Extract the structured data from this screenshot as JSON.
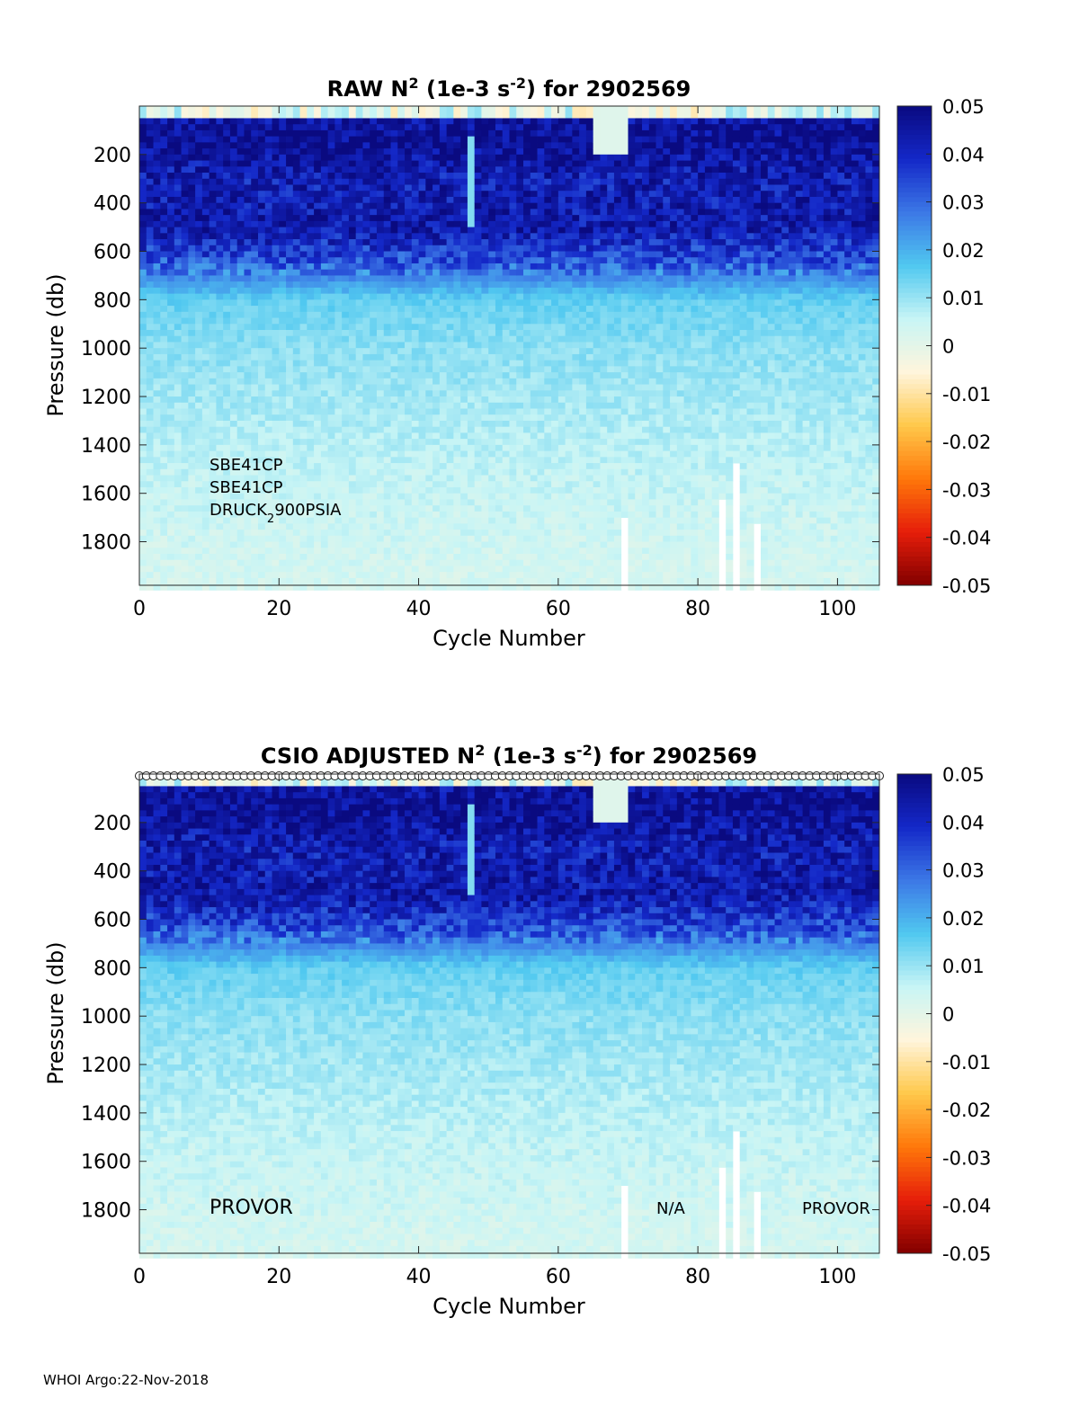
{
  "footer": "WHOI Argo:22-Nov-2018",
  "chart_data": [
    {
      "type": "heatmap",
      "title": "RAW N² (1e-3 s⁻²) for 2902569",
      "title_parts": {
        "prefix": "RAW N",
        "sup1": "2",
        "mid": " (1e-3 s",
        "sup2": "-2",
        "suffix": ") for 2902569"
      },
      "xlabel": "Cycle Number",
      "ylabel": "Pressure (db)",
      "xlim": [
        0,
        106
      ],
      "ylim": [
        1980,
        0
      ],
      "y_reversed": true,
      "xticks": [
        0,
        20,
        40,
        60,
        80,
        100
      ],
      "yticks": [
        200,
        400,
        600,
        800,
        1000,
        1200,
        1400,
        1600,
        1800
      ],
      "colorbar": {
        "min": -0.05,
        "max": 0.05,
        "ticks": [
          0.05,
          0.04,
          0.03,
          0.02,
          0.01,
          0,
          -0.01,
          -0.02,
          -0.03,
          -0.04,
          -0.05
        ],
        "tick_labels": [
          "0.05",
          "0.04",
          "0.03",
          "0.02",
          "0.01",
          "0",
          "-0.01",
          "-0.02",
          "-0.03",
          "-0.04",
          "-0.05"
        ],
        "colormap": [
          "#0a0a80",
          "#1428c8",
          "#3c78e6",
          "#50c8f0",
          "#c8f5f5",
          "#fff5dc",
          "#ffc84b",
          "#ff780a",
          "#e61e0a",
          "#820000"
        ]
      },
      "annotations": [
        "SBE41CP",
        "SBE41CP",
        "DRUCK"
      ],
      "annotation_sub": {
        "base": "DRUCK",
        "sub": "2",
        "rest": "900PSIA"
      },
      "profile": [
        {
          "p": 0,
          "v": 0.0
        },
        {
          "p": 40,
          "v": 0.045
        },
        {
          "p": 150,
          "v": 0.048
        },
        {
          "p": 300,
          "v": 0.042
        },
        {
          "p": 500,
          "v": 0.044
        },
        {
          "p": 650,
          "v": 0.032
        },
        {
          "p": 800,
          "v": 0.015
        },
        {
          "p": 1000,
          "v": 0.011
        },
        {
          "p": 1200,
          "v": 0.009
        },
        {
          "p": 1500,
          "v": 0.006
        },
        {
          "p": 1800,
          "v": 0.004
        },
        {
          "p": 1980,
          "v": 0.003
        }
      ],
      "missing_columns": [
        {
          "x": 69,
          "p_from": 1700,
          "p_to": 1980
        },
        {
          "x": 83,
          "p_from": 1620,
          "p_to": 1980
        },
        {
          "x": 85,
          "p_from": 1460,
          "p_to": 1980
        },
        {
          "x": 88,
          "p_from": 1720,
          "p_to": 1980
        }
      ]
    },
    {
      "type": "heatmap",
      "title": "CSIO ADJUSTED N² (1e-3 s⁻²) for 2902569",
      "title_parts": {
        "prefix": "CSIO  ADJUSTED N",
        "sup1": "2",
        "mid": " (1e-3 s",
        "sup2": "-2",
        "suffix": ") for 2902569"
      },
      "xlabel": "Cycle Number",
      "ylabel": "Pressure (db)",
      "xlim": [
        0,
        106
      ],
      "ylim": [
        1980,
        0
      ],
      "y_reversed": true,
      "xticks": [
        0,
        20,
        40,
        60,
        80,
        100
      ],
      "yticks": [
        200,
        400,
        600,
        800,
        1000,
        1200,
        1400,
        1600,
        1800
      ],
      "colorbar": {
        "min": -0.05,
        "max": 0.05,
        "ticks": [
          0.05,
          0.04,
          0.03,
          0.02,
          0.01,
          0,
          -0.01,
          -0.02,
          -0.03,
          -0.04,
          -0.05
        ],
        "tick_labels": [
          "0.05",
          "0.04",
          "0.03",
          "0.02",
          "0.01",
          "0",
          "-0.01",
          "-0.02",
          "-0.03",
          "-0.04",
          "-0.05"
        ]
      },
      "annotations": [
        "PROVOR",
        "N/A",
        "PROVOR"
      ],
      "qc_markers": "circles at top for every cycle 0–106",
      "missing_columns": [
        {
          "x": 69,
          "p_from": 1700,
          "p_to": 1980
        },
        {
          "x": 83,
          "p_from": 1620,
          "p_to": 1980
        },
        {
          "x": 85,
          "p_from": 1460,
          "p_to": 1980
        },
        {
          "x": 88,
          "p_from": 1720,
          "p_to": 1980
        }
      ]
    }
  ]
}
